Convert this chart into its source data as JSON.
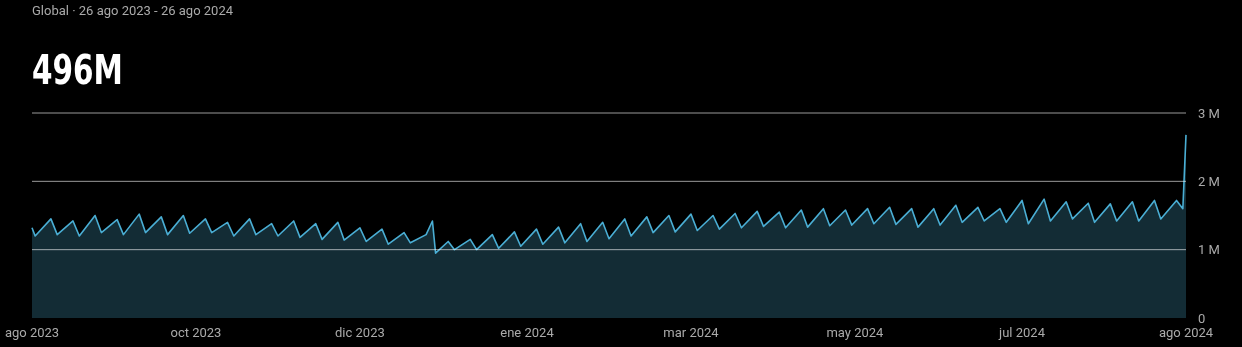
{
  "chart_data": {
    "type": "area",
    "subtitle": "Global · 26 ago 2023 - 26 ago 2024",
    "title": "496M",
    "xlim": [
      "2023-08-26",
      "2024-08-26"
    ],
    "xticks": [
      {
        "value": "2023-08-26",
        "label": "ago 2023"
      },
      {
        "value": "2023-10-17",
        "label": "oct 2023"
      },
      {
        "value": "2023-12-08",
        "label": "dic 2023"
      },
      {
        "value": "2024-01-30",
        "label": "ene 2024"
      },
      {
        "value": "2024-03-22",
        "label": "mar 2024"
      },
      {
        "value": "2024-05-13",
        "label": "may 2024"
      },
      {
        "value": "2024-07-05",
        "label": "jul 2024"
      },
      {
        "value": "2024-08-26",
        "label": "ago 2024"
      }
    ],
    "ylim": [
      0,
      3
    ],
    "yticks": [
      0,
      {
        "value": 1,
        "label": "1 M"
      },
      {
        "value": 2,
        "label": "2 M"
      },
      {
        "value": 3,
        "label": "3 M"
      }
    ],
    "grid": "y",
    "series": [
      {
        "color": "#4aaed4",
        "x": [
          "2023-08-26",
          "2023-08-27",
          "2023-09-01",
          "2023-09-03",
          "2023-09-08",
          "2023-09-10",
          "2023-09-15",
          "2023-09-17",
          "2023-09-22",
          "2023-09-24",
          "2023-09-29",
          "2023-10-01",
          "2023-10-06",
          "2023-10-08",
          "2023-10-13",
          "2023-10-15",
          "2023-10-20",
          "2023-10-22",
          "2023-10-27",
          "2023-10-29",
          "2023-11-03",
          "2023-11-05",
          "2023-11-10",
          "2023-11-12",
          "2023-11-17",
          "2023-11-19",
          "2023-11-24",
          "2023-11-26",
          "2023-12-01",
          "2023-12-03",
          "2023-12-08",
          "2023-12-10",
          "2023-12-15",
          "2023-12-17",
          "2023-12-22",
          "2023-12-24",
          "2023-12-29",
          "2023-12-31",
          "2024-01-01",
          "2024-01-05",
          "2024-01-07",
          "2024-01-12",
          "2024-01-14",
          "2024-01-19",
          "2024-01-21",
          "2024-01-26",
          "2024-01-28",
          "2024-02-02",
          "2024-02-04",
          "2024-02-09",
          "2024-02-11",
          "2024-02-16",
          "2024-02-18",
          "2024-02-23",
          "2024-02-25",
          "2024-03-01",
          "2024-03-03",
          "2024-03-08",
          "2024-03-10",
          "2024-03-15",
          "2024-03-17",
          "2024-03-22",
          "2024-03-24",
          "2024-03-29",
          "2024-03-31",
          "2024-04-05",
          "2024-04-07",
          "2024-04-12",
          "2024-04-14",
          "2024-04-19",
          "2024-04-21",
          "2024-04-26",
          "2024-04-28",
          "2024-05-03",
          "2024-05-05",
          "2024-05-10",
          "2024-05-12",
          "2024-05-17",
          "2024-05-19",
          "2024-05-24",
          "2024-05-26",
          "2024-05-31",
          "2024-06-02",
          "2024-06-07",
          "2024-06-09",
          "2024-06-14",
          "2024-06-16",
          "2024-06-21",
          "2024-06-23",
          "2024-06-28",
          "2024-06-30",
          "2024-07-05",
          "2024-07-07",
          "2024-07-12",
          "2024-07-14",
          "2024-07-19",
          "2024-07-21",
          "2024-07-26",
          "2024-07-28",
          "2024-08-02",
          "2024-08-04",
          "2024-08-09",
          "2024-08-11",
          "2024-08-16",
          "2024-08-18",
          "2024-08-23",
          "2024-08-25",
          "2024-08-26"
        ],
        "values": [
          1.32,
          1.2,
          1.45,
          1.22,
          1.42,
          1.2,
          1.5,
          1.25,
          1.44,
          1.22,
          1.52,
          1.25,
          1.48,
          1.22,
          1.5,
          1.24,
          1.45,
          1.25,
          1.4,
          1.2,
          1.45,
          1.22,
          1.38,
          1.2,
          1.42,
          1.18,
          1.38,
          1.15,
          1.4,
          1.14,
          1.32,
          1.12,
          1.3,
          1.08,
          1.25,
          1.1,
          1.22,
          1.42,
          0.95,
          1.12,
          1.0,
          1.15,
          1.0,
          1.22,
          1.02,
          1.26,
          1.05,
          1.3,
          1.08,
          1.33,
          1.1,
          1.38,
          1.12,
          1.4,
          1.16,
          1.45,
          1.2,
          1.48,
          1.25,
          1.5,
          1.26,
          1.52,
          1.28,
          1.5,
          1.3,
          1.53,
          1.32,
          1.56,
          1.34,
          1.55,
          1.32,
          1.58,
          1.33,
          1.6,
          1.35,
          1.58,
          1.36,
          1.6,
          1.38,
          1.62,
          1.37,
          1.6,
          1.33,
          1.6,
          1.36,
          1.65,
          1.4,
          1.62,
          1.42,
          1.6,
          1.4,
          1.72,
          1.38,
          1.74,
          1.42,
          1.7,
          1.45,
          1.68,
          1.4,
          1.67,
          1.42,
          1.7,
          1.42,
          1.72,
          1.45,
          1.72,
          1.6,
          2.68
        ]
      }
    ]
  }
}
